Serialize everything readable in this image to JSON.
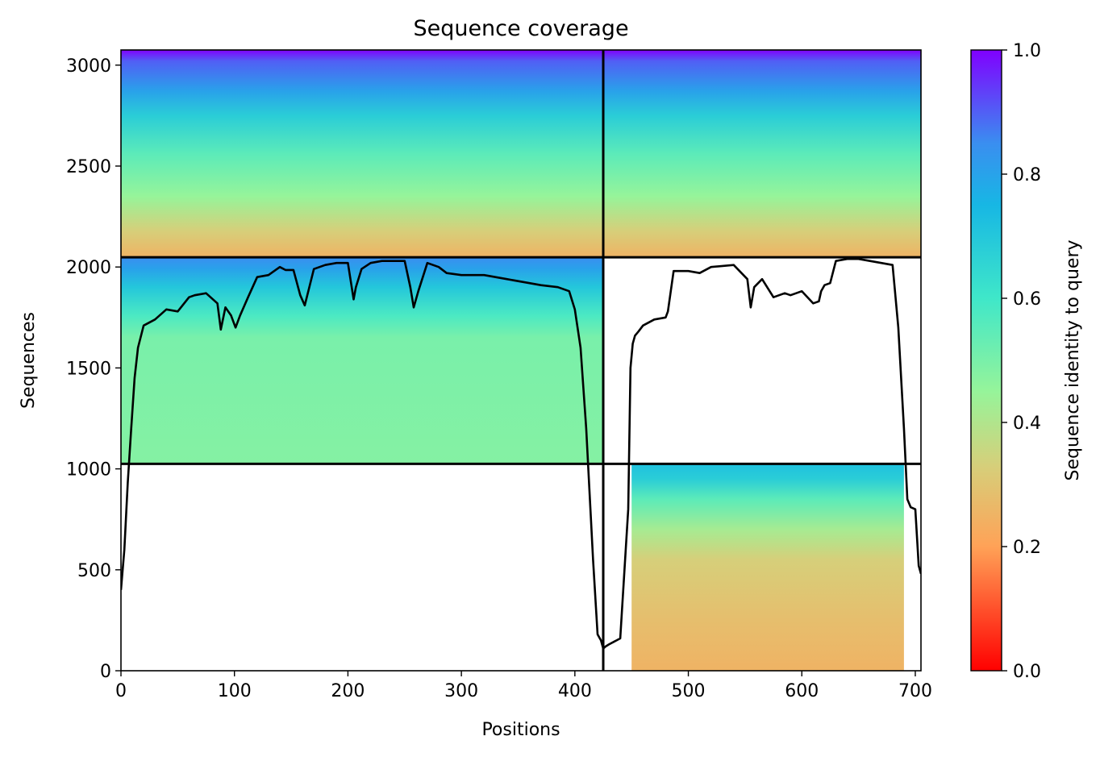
{
  "chart_data": {
    "type": "heatmap",
    "title": "Sequence coverage",
    "xlabel": "Positions",
    "ylabel": "Sequences",
    "xlim": [
      0,
      705
    ],
    "ylim": [
      0,
      3075
    ],
    "xticks": [
      0,
      100,
      200,
      300,
      400,
      500,
      600,
      700
    ],
    "yticks": [
      0,
      500,
      1000,
      1500,
      2000,
      2500,
      3000
    ],
    "colorbar": {
      "label": "Sequence identity to query",
      "range": [
        0.0,
        1.0
      ],
      "ticks": [
        "0.0",
        "0.2",
        "0.4",
        "0.6",
        "0.8",
        "1.0"
      ],
      "colormap": "rainbow"
    },
    "divider_lines": {
      "vertical_x": 425,
      "horizontal_y": [
        1025,
        2048
      ]
    },
    "blocks": [
      {
        "name": "top-left",
        "x_range": [
          0,
          425
        ],
        "y_range": [
          2048,
          3075
        ],
        "identity_bands": [
          [
            2048,
            0.25
          ],
          [
            2180,
            0.33
          ],
          [
            2350,
            0.45
          ],
          [
            2560,
            0.55
          ],
          [
            2750,
            0.68
          ],
          [
            2870,
            0.8
          ],
          [
            3020,
            0.9
          ],
          [
            3075,
            1.0
          ]
        ]
      },
      {
        "name": "top-right",
        "x_range": [
          425,
          705
        ],
        "y_range": [
          2048,
          3075
        ],
        "identity_bands": [
          [
            2048,
            0.25
          ],
          [
            2180,
            0.33
          ],
          [
            2350,
            0.45
          ],
          [
            2560,
            0.55
          ],
          [
            2750,
            0.68
          ],
          [
            2870,
            0.8
          ],
          [
            3020,
            0.9
          ],
          [
            3075,
            1.0
          ]
        ]
      },
      {
        "name": "middle-left",
        "x_range": [
          0,
          425
        ],
        "y_range": [
          1025,
          2048
        ],
        "identity_bands": [
          [
            1025,
            0.48
          ],
          [
            1650,
            0.5
          ],
          [
            1760,
            0.58
          ],
          [
            1900,
            0.7
          ],
          [
            1990,
            0.8
          ],
          [
            2048,
            0.85
          ]
        ]
      },
      {
        "name": "bottom-right",
        "x_range": [
          450,
          690
        ],
        "y_range": [
          0,
          1025
        ],
        "identity_bands": [
          [
            0,
            0.25
          ],
          [
            250,
            0.28
          ],
          [
            550,
            0.33
          ],
          [
            700,
            0.42
          ],
          [
            850,
            0.55
          ],
          [
            950,
            0.68
          ],
          [
            1025,
            0.72
          ]
        ]
      }
    ],
    "series": [
      {
        "type": "line",
        "color": "#000000",
        "x": [
          0,
          3,
          6,
          9,
          12,
          15,
          20,
          30,
          40,
          50,
          60,
          65,
          75,
          85,
          88,
          92,
          97,
          101,
          105,
          112,
          120,
          130,
          140,
          145,
          152,
          158,
          162,
          170,
          180,
          190,
          200,
          205,
          207,
          212,
          220,
          230,
          240,
          250,
          255,
          258,
          262,
          270,
          280,
          287,
          300,
          320,
          340,
          360,
          370,
          385,
          395,
          400,
          405,
          410,
          416,
          420,
          423,
          425,
          427,
          430,
          440,
          447,
          449,
          451,
          453,
          456,
          460,
          470,
          480,
          482,
          487,
          500,
          510,
          520,
          540,
          552,
          555,
          558,
          565,
          575,
          585,
          590,
          600,
          610,
          615,
          617,
          620,
          625,
          630,
          640,
          650,
          660,
          670,
          680,
          685,
          690,
          693,
          696,
          700,
          703,
          705
        ],
        "y": [
          400,
          600,
          930,
          1200,
          1450,
          1600,
          1710,
          1740,
          1790,
          1780,
          1850,
          1860,
          1870,
          1820,
          1690,
          1800,
          1760,
          1700,
          1760,
          1850,
          1950,
          1960,
          2000,
          1985,
          1985,
          1860,
          1810,
          1990,
          2010,
          2020,
          2020,
          1840,
          1900,
          1990,
          2020,
          2030,
          2030,
          2030,
          1900,
          1800,
          1880,
          2020,
          2000,
          1970,
          1960,
          1960,
          1940,
          1920,
          1910,
          1900,
          1880,
          1790,
          1600,
          1200,
          550,
          180,
          150,
          110,
          120,
          130,
          160,
          800,
          1500,
          1620,
          1660,
          1680,
          1710,
          1740,
          1750,
          1780,
          1980,
          1980,
          1970,
          2000,
          2010,
          1940,
          1800,
          1900,
          1940,
          1850,
          1870,
          1860,
          1880,
          1820,
          1830,
          1880,
          1910,
          1920,
          2030,
          2040,
          2040,
          2030,
          2020,
          2010,
          1700,
          1200,
          850,
          810,
          800,
          520,
          480
        ]
      }
    ]
  }
}
